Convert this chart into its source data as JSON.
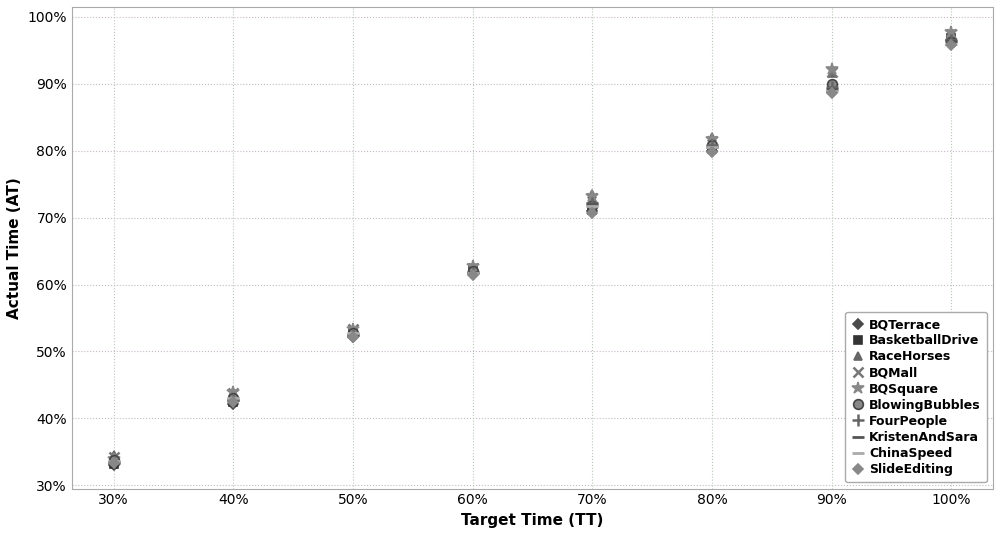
{
  "title": "",
  "xlabel": "Target Time (TT)",
  "ylabel": "Actual Time (AT)",
  "xlim": [
    0.265,
    1.035
  ],
  "ylim": [
    0.295,
    1.015
  ],
  "xticks": [
    0.3,
    0.4,
    0.5,
    0.6,
    0.7,
    0.8,
    0.9,
    1.0
  ],
  "yticks": [
    0.3,
    0.4,
    0.5,
    0.6,
    0.7,
    0.8,
    0.9,
    1.0
  ],
  "series": [
    {
      "name": "BQTerrace",
      "marker": "D",
      "color": "#4a4a4a",
      "markersize": 5,
      "data": [
        [
          0.3,
          0.33
        ],
        [
          0.4,
          0.422
        ],
        [
          0.5,
          0.522
        ],
        [
          0.6,
          0.618
        ],
        [
          0.7,
          0.71
        ],
        [
          0.8,
          0.8
        ],
        [
          0.9,
          0.888
        ],
        [
          1.0,
          0.965
        ]
      ]
    },
    {
      "name": "BasketballDrive",
      "marker": "s",
      "color": "#333333",
      "markersize": 6,
      "data": [
        [
          0.3,
          0.332
        ],
        [
          0.4,
          0.424
        ],
        [
          0.5,
          0.528
        ],
        [
          0.6,
          0.622
        ],
        [
          0.7,
          0.712
        ],
        [
          0.8,
          0.803
        ],
        [
          0.9,
          0.892
        ],
        [
          1.0,
          0.968
        ]
      ]
    },
    {
      "name": "RaceHorses",
      "marker": "^",
      "color": "#666666",
      "markersize": 6,
      "data": [
        [
          0.3,
          0.345
        ],
        [
          0.4,
          0.44
        ],
        [
          0.5,
          0.53
        ],
        [
          0.6,
          0.626
        ],
        [
          0.7,
          0.735
        ],
        [
          0.8,
          0.82
        ],
        [
          0.9,
          0.916
        ],
        [
          1.0,
          0.972
        ]
      ]
    },
    {
      "name": "BQMall",
      "marker": "x",
      "color": "#777777",
      "markersize": 7,
      "data": [
        [
          0.3,
          0.342
        ],
        [
          0.4,
          0.438
        ],
        [
          0.5,
          0.533
        ],
        [
          0.6,
          0.625
        ],
        [
          0.7,
          0.73
        ],
        [
          0.8,
          0.815
        ],
        [
          0.9,
          0.918
        ],
        [
          1.0,
          0.975
        ]
      ]
    },
    {
      "name": "BQSquare",
      "marker": "*",
      "color": "#888888",
      "markersize": 9,
      "data": [
        [
          0.3,
          0.34
        ],
        [
          0.4,
          0.44
        ],
        [
          0.5,
          0.534
        ],
        [
          0.6,
          0.628
        ],
        [
          0.7,
          0.732
        ],
        [
          0.8,
          0.818
        ],
        [
          0.9,
          0.922
        ],
        [
          1.0,
          0.978
        ]
      ]
    },
    {
      "name": "BlowingBubbles",
      "marker": "o",
      "color": "#555555",
      "markersize": 7,
      "data": [
        [
          0.3,
          0.338
        ],
        [
          0.4,
          0.43
        ],
        [
          0.5,
          0.528
        ],
        [
          0.6,
          0.62
        ],
        [
          0.7,
          0.718
        ],
        [
          0.8,
          0.808
        ],
        [
          0.9,
          0.9
        ],
        [
          1.0,
          0.962
        ]
      ]
    },
    {
      "name": "FourPeople",
      "marker": "+",
      "color": "#666666",
      "markersize": 7,
      "data": [
        [
          0.3,
          0.335
        ],
        [
          0.4,
          0.428
        ],
        [
          0.5,
          0.525
        ],
        [
          0.6,
          0.618
        ],
        [
          0.7,
          0.722
        ],
        [
          0.8,
          0.808
        ],
        [
          0.9,
          0.896
        ],
        [
          1.0,
          0.966
        ]
      ]
    },
    {
      "name": "KristenAndSara",
      "marker": "_",
      "color": "#555555",
      "markersize": 9,
      "data": [
        [
          0.3,
          0.334
        ],
        [
          0.4,
          0.428
        ],
        [
          0.5,
          0.525
        ],
        [
          0.6,
          0.619
        ],
        [
          0.7,
          0.72
        ],
        [
          0.8,
          0.806
        ],
        [
          0.9,
          0.892
        ],
        [
          1.0,
          0.964
        ]
      ]
    },
    {
      "name": "ChinaSpeed",
      "marker": "_",
      "color": "#aaaaaa",
      "markersize": 9,
      "data": [
        [
          0.3,
          0.336
        ],
        [
          0.4,
          0.43
        ],
        [
          0.5,
          0.527
        ],
        [
          0.6,
          0.618
        ],
        [
          0.7,
          0.718
        ],
        [
          0.8,
          0.805
        ],
        [
          0.9,
          0.89
        ],
        [
          1.0,
          0.96
        ]
      ]
    },
    {
      "name": "SlideEditing",
      "marker": "D",
      "color": "#888888",
      "markersize": 5,
      "data": [
        [
          0.3,
          0.333
        ],
        [
          0.4,
          0.425
        ],
        [
          0.5,
          0.521
        ],
        [
          0.6,
          0.615
        ],
        [
          0.7,
          0.707
        ],
        [
          0.8,
          0.798
        ],
        [
          0.9,
          0.886
        ],
        [
          1.0,
          0.958
        ]
      ]
    }
  ],
  "hgrid_color": "#c8b8c8",
  "vgrid_color": "#b8c8b8",
  "grid_linestyle": ":",
  "background_color": "#ffffff",
  "fontsize_axis_label": 11,
  "fontsize_tick": 10,
  "fontsize_legend": 9
}
